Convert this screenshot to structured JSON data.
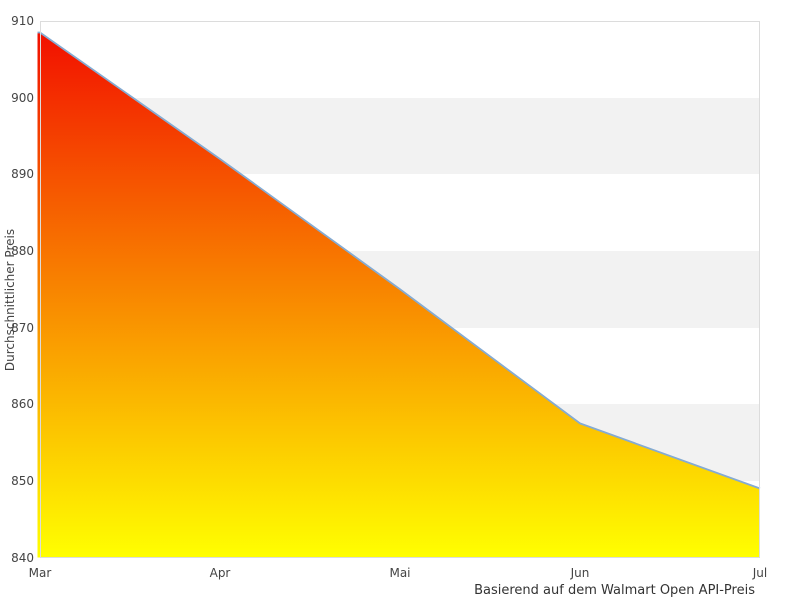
{
  "chart_data": {
    "type": "area",
    "x": [
      "Mar",
      "Apr",
      "Mai",
      "Jun",
      "Jul"
    ],
    "values": [
      908.5,
      892,
      875,
      857.5,
      849
    ],
    "title": "",
    "xlabel": "",
    "ylabel": "Durchschnittlicher Preis",
    "caption": "Basierend auf dem Walmart Open API-Preis",
    "ylim": [
      840,
      910
    ],
    "yticks": [
      840,
      850,
      860,
      870,
      880,
      890,
      900,
      910
    ],
    "legend": "none",
    "grid": "alternating horizontal bands",
    "band_color": "#f2f2f2",
    "band_alt_color": "#ffffff",
    "plot_border_color": "#dcdcdc",
    "line_color": "#85abd2",
    "fill_gradient_top": "#f21000",
    "fill_gradient_bottom": "#ffff00",
    "text_color": "#444444"
  }
}
